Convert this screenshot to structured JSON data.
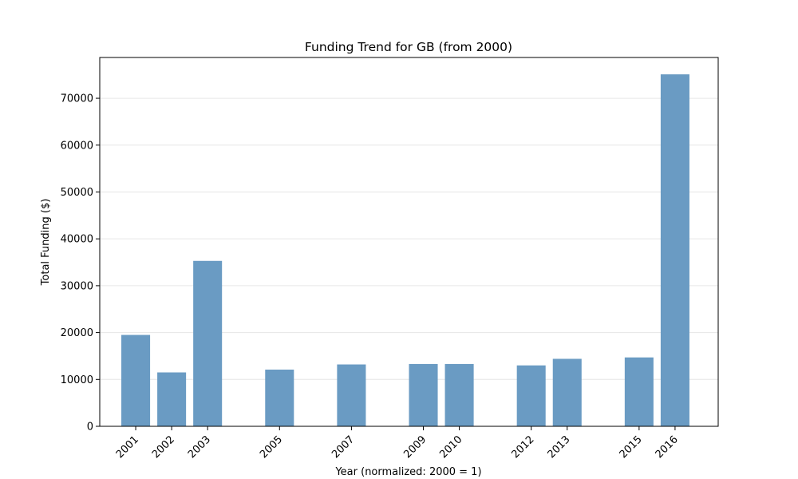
{
  "chart_data": {
    "type": "bar",
    "title": "Funding Trend for GB (from 2000)",
    "xlabel": "Year (normalized: 2000 = 1)",
    "ylabel": "Total Funding ($)",
    "x": [
      2001,
      2002,
      2003,
      2005,
      2007,
      2009,
      2010,
      2012,
      2013,
      2015,
      2016
    ],
    "x_tick_labels": [
      "2001",
      "2002",
      "2003",
      "2005",
      "2007",
      "2009",
      "2010",
      "2012",
      "2013",
      "2015",
      "2016"
    ],
    "values": [
      19500,
      11500,
      35300,
      12100,
      13200,
      13300,
      13300,
      13000,
      14400,
      14700,
      75100
    ],
    "xlim": [
      2000.0,
      2017.2
    ],
    "ylim": [
      0,
      78700
    ],
    "y_ticks": [
      0,
      10000,
      20000,
      30000,
      40000,
      50000,
      60000,
      70000
    ],
    "y_tick_labels": [
      "0",
      "10000",
      "20000",
      "30000",
      "40000",
      "50000",
      "60000",
      "70000"
    ],
    "bar_color": "#6a9bc3",
    "grid": "horizontal",
    "legend": "none"
  }
}
